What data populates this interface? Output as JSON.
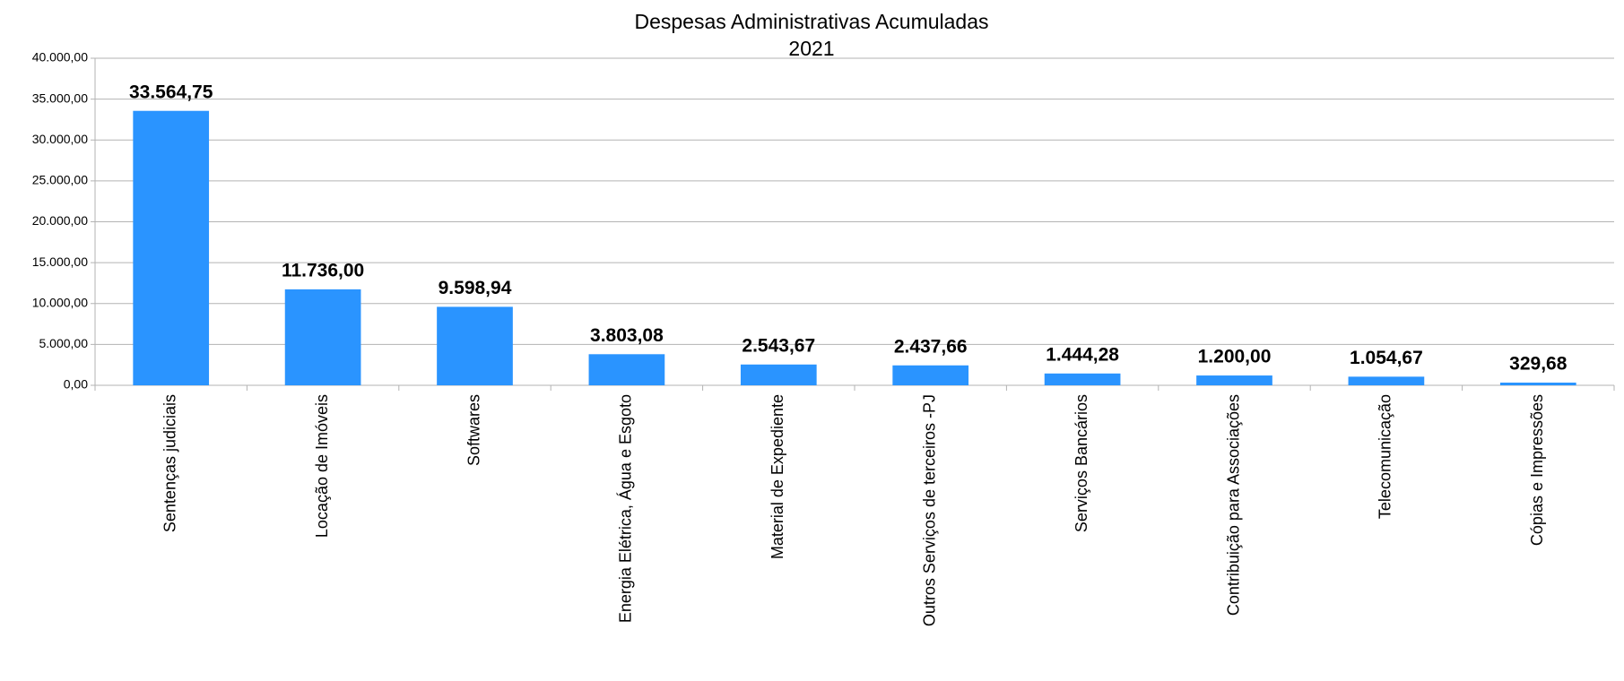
{
  "chart_data": {
    "type": "bar",
    "title": "Despesas  Administrativas Acumuladas",
    "subtitle": "2021",
    "categories": [
      "Sentenças judiciais",
      "Locação de Imóveis",
      "Softwares",
      "Energia Elétrica, Água e Esgoto",
      "Material de Expediente",
      "Outros Serviços de terceiros -PJ",
      "Serviços Bancários",
      "Contribuição para Associações",
      "Telecomunicação",
      "Cópias e Impressões"
    ],
    "values": [
      33564.75,
      11736.0,
      9598.94,
      3803.08,
      2543.67,
      2437.66,
      1444.28,
      1200.0,
      1054.67,
      329.68
    ],
    "value_labels": [
      "33.564,75",
      "11.736,00",
      "9.598,94",
      "3.803,08",
      "2.543,67",
      "2.437,66",
      "1.444,28",
      "1.200,00",
      "1.054,67",
      "329,68"
    ],
    "color": "#2a94ff",
    "ylim": [
      0,
      40000
    ],
    "yticks": [
      {
        "value": 0,
        "label": "0,00"
      },
      {
        "value": 5000,
        "label": "5.000,00"
      },
      {
        "value": 10000,
        "label": "10.000,00"
      },
      {
        "value": 15000,
        "label": "15.000,00"
      },
      {
        "value": 20000,
        "label": "20.000,00"
      },
      {
        "value": 25000,
        "label": "25.000,00"
      },
      {
        "value": 30000,
        "label": "30.000,00"
      },
      {
        "value": 35000,
        "label": "35.000,00"
      },
      {
        "value": 40000,
        "label": "40.000,00"
      }
    ],
    "grid": true
  }
}
